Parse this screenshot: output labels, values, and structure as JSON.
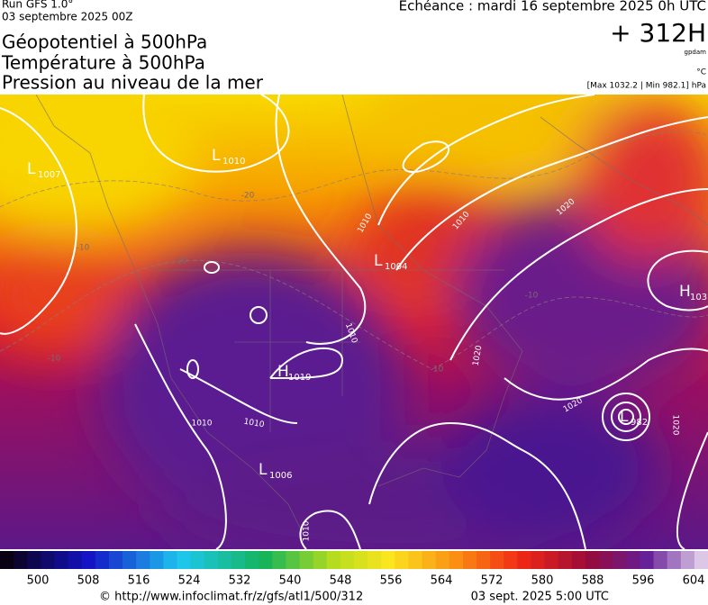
{
  "header": {
    "run": "Run GFS 1.0°",
    "date": "03 septembre 2025 00Z",
    "titles": [
      "Géopotentiel à 500hPa",
      "Température à 500hPa",
      "Pression au niveau de la mer"
    ],
    "forecast": "Échéance : mardi 16 septembre 2025 0h UTC",
    "lead": "+ 312H",
    "lead_unit": "gpdam",
    "temp_unit": "°C",
    "pressure_range": "[Max 1032.2 | Min 982.1] hPa"
  },
  "map": {
    "pressure_centers": [
      {
        "letter": "L",
        "value": 1007
      },
      {
        "letter": "L",
        "value": 1010
      },
      {
        "letter": "L",
        "value": 1004
      },
      {
        "letter": "H",
        "value": 103
      },
      {
        "letter": "H",
        "value": 1019
      },
      {
        "letter": "L",
        "value": 1006
      },
      {
        "letter": "L",
        "value": 982
      }
    ],
    "isobar_labels": [
      1010,
      1010,
      1020,
      1010,
      1020,
      1020,
      1020,
      1010,
      1010,
      1010
    ],
    "temperature_labels": [
      -20,
      -10,
      -10,
      -10,
      -10,
      -10
    ]
  },
  "colorbar": {
    "labels": [
      500,
      508,
      516,
      524,
      532,
      540,
      548,
      556,
      564,
      572,
      580,
      588,
      596,
      604
    ]
  },
  "footer": {
    "url": "© http://www.infoclimat.fr/z/gfs/atl1/500/312",
    "time": "03 sept. 2025 5:00 UTC"
  }
}
